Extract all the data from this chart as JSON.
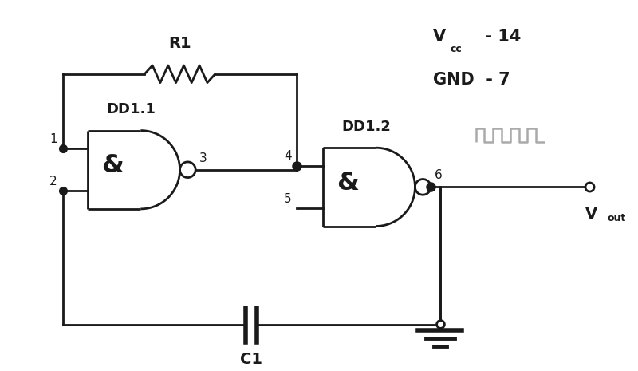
{
  "background_color": "#ffffff",
  "line_color": "#1a1a1a",
  "text_color": "#1a1a1a",
  "gray_color": "#aaaaaa",
  "gate1_label": "&",
  "gate2_label": "&",
  "dd1_label": "DD1.1",
  "dd2_label": "DD1.2",
  "r1_label": "R1",
  "c1_label": "C1",
  "vcc_label": "V",
  "vcc_sub": "cc",
  "vcc_val": "  - 14",
  "gnd_label": "GND  - 7",
  "vout_label": "V",
  "vout_sub": "out",
  "pin1": "1",
  "pin2": "2",
  "pin3": "3",
  "pin4": "4",
  "pin5": "5",
  "pin6": "6",
  "lw": 2.0,
  "dot_size": 7
}
